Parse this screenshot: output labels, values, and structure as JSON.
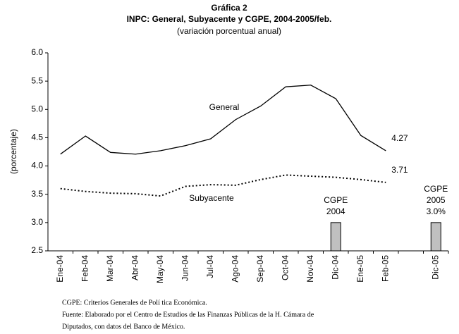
{
  "chart_data": {
    "type": "line",
    "title": "Gráfica 2",
    "subtitle": "INPC: General, Subyacente y CGPE, 2004-2005/feb.",
    "subtitle2": "(variación porcentual anual)",
    "ylabel": "(porcentaje)",
    "categories": [
      "Ene-04",
      "Feb-04",
      "Mar-04",
      "Abr-04",
      "May-04",
      "Jun-04",
      "Jul-04",
      "Ago-04",
      "Sep-04",
      "Oct-04",
      "Nov-04",
      "Dic-04",
      "Ene-05",
      "Feb-05",
      null,
      "Dic-05"
    ],
    "series": [
      {
        "name": "General",
        "type": "line",
        "color": "#000000",
        "values": [
          4.21,
          4.53,
          4.24,
          4.21,
          4.27,
          4.36,
          4.48,
          4.82,
          5.06,
          5.4,
          5.43,
          5.19,
          4.54,
          4.27,
          null,
          null
        ],
        "value_labels": [
          null,
          null,
          null,
          null,
          null,
          null,
          null,
          null,
          null,
          null,
          null,
          null,
          null,
          "4.27",
          null,
          null
        ]
      },
      {
        "name": "Subyacente",
        "type": "line",
        "color": "#000000",
        "dashed": true,
        "values": [
          3.6,
          3.55,
          3.52,
          3.51,
          3.47,
          3.64,
          3.67,
          3.66,
          3.76,
          3.84,
          3.82,
          3.8,
          3.76,
          3.71,
          null,
          null
        ],
        "value_labels": [
          null,
          null,
          null,
          null,
          null,
          null,
          null,
          null,
          null,
          null,
          null,
          null,
          null,
          "3.71",
          null,
          null
        ]
      },
      {
        "name": "CGPE",
        "type": "bar",
        "color": "#c0c0c0",
        "values": [
          null,
          null,
          null,
          null,
          null,
          null,
          null,
          null,
          null,
          null,
          null,
          3.0,
          null,
          null,
          null,
          3.0
        ],
        "labels": [
          null,
          null,
          null,
          null,
          null,
          null,
          null,
          null,
          null,
          null,
          null,
          [
            "CGPE",
            "2004"
          ],
          null,
          null,
          null,
          [
            "CGPE",
            "2005"
          ]
        ],
        "value_labels": [
          null,
          null,
          null,
          null,
          null,
          null,
          null,
          null,
          null,
          null,
          null,
          null,
          null,
          null,
          null,
          "3.0%"
        ]
      }
    ],
    "ylim": [
      2.5,
      6.0
    ],
    "yticks": [
      2.5,
      {
        "value": 3.0,
        "label": "3.0"
      },
      3.5,
      {
        "value": 4.0,
        "label": "4.0"
      },
      4.5,
      {
        "value": 5.0,
        "label": "5.0"
      },
      5.5,
      {
        "value": 6.0,
        "label": "6.0"
      }
    ],
    "grid": false,
    "notes": [
      "CGPE: Criterios Generales de Polí tica Económica.",
      "Fuente: Elaborado por el Centro de Estudios de las Finanzas Públicas de la H. Cámara de",
      "Diputados, con  datos del Banco de México."
    ]
  }
}
